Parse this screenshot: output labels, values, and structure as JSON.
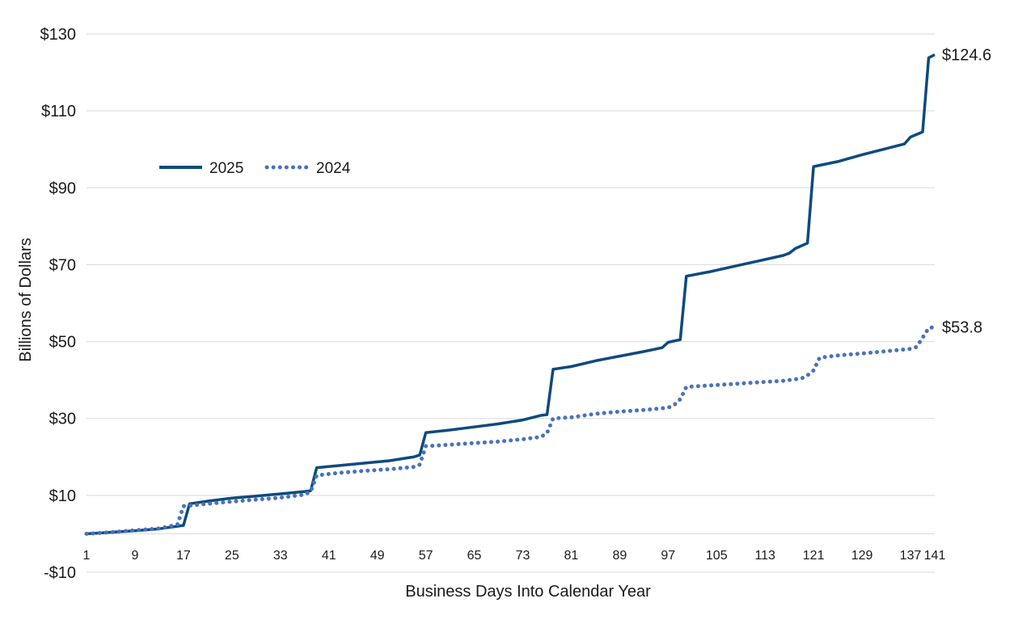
{
  "chart_data": {
    "type": "line",
    "title": "",
    "xlabel": "Business Days Into Calendar Year",
    "ylabel": "Billions of Dollars",
    "xlim": [
      1,
      141
    ],
    "ylim": [
      -10,
      130
    ],
    "x_ticks": [
      1,
      9,
      17,
      25,
      33,
      41,
      49,
      57,
      65,
      73,
      81,
      89,
      97,
      105,
      113,
      121,
      129,
      137,
      141
    ],
    "x_tick_labels": [
      "1",
      "9",
      "17",
      "25",
      "33",
      "41",
      "49",
      "57",
      "65",
      "73",
      "81",
      "89",
      "97",
      "105",
      "113",
      "121",
      "129",
      "137",
      "141"
    ],
    "y_ticks": [
      -10,
      10,
      30,
      50,
      70,
      90,
      110,
      130
    ],
    "y_tick_labels": [
      "-$10",
      "$10",
      "$30",
      "$50",
      "$70",
      "$90",
      "$110",
      "$130"
    ],
    "grid": true,
    "legend_position": "upper-left",
    "series": [
      {
        "name": "2025",
        "style": "solid",
        "color": "#0d4a7e",
        "end_label": "$124.6",
        "points": [
          [
            1,
            0
          ],
          [
            5,
            0.4
          ],
          [
            9,
            0.8
          ],
          [
            13,
            1.3
          ],
          [
            17,
            2.2
          ],
          [
            18,
            7.8
          ],
          [
            21,
            8.5
          ],
          [
            25,
            9.3
          ],
          [
            29,
            9.8
          ],
          [
            33,
            10.4
          ],
          [
            37,
            11
          ],
          [
            38,
            11.2
          ],
          [
            39,
            17.2
          ],
          [
            43,
            17.8
          ],
          [
            47,
            18.4
          ],
          [
            51,
            19
          ],
          [
            55,
            20
          ],
          [
            56,
            20.5
          ],
          [
            57,
            26.3
          ],
          [
            61,
            27
          ],
          [
            65,
            27.8
          ],
          [
            69,
            28.6
          ],
          [
            73,
            29.6
          ],
          [
            76,
            30.8
          ],
          [
            77,
            31
          ],
          [
            78,
            42.8
          ],
          [
            81,
            43.5
          ],
          [
            85,
            45
          ],
          [
            89,
            46.2
          ],
          [
            93,
            47.4
          ],
          [
            96,
            48.4
          ],
          [
            97,
            49.8
          ],
          [
            99,
            50.5
          ],
          [
            100,
            67
          ],
          [
            104,
            68.2
          ],
          [
            108,
            69.6
          ],
          [
            112,
            71
          ],
          [
            116,
            72.4
          ],
          [
            117,
            73
          ],
          [
            118,
            74.2
          ],
          [
            120,
            75.6
          ],
          [
            121,
            95.5
          ],
          [
            125,
            96.8
          ],
          [
            129,
            98.6
          ],
          [
            133,
            100.2
          ],
          [
            136,
            101.4
          ],
          [
            137,
            103.2
          ],
          [
            139,
            104.5
          ],
          [
            140,
            123.8
          ],
          [
            141,
            124.6
          ]
        ]
      },
      {
        "name": "2024",
        "style": "dotted",
        "color": "#4a72b8",
        "end_label": "$53.8",
        "points": [
          [
            1,
            0
          ],
          [
            5,
            0.4
          ],
          [
            9,
            0.9
          ],
          [
            13,
            1.4
          ],
          [
            16,
            2.4
          ],
          [
            17,
            7.2
          ],
          [
            21,
            7.8
          ],
          [
            25,
            8.4
          ],
          [
            29,
            8.9
          ],
          [
            33,
            9.4
          ],
          [
            37,
            10.2
          ],
          [
            38,
            11
          ],
          [
            39,
            15.2
          ],
          [
            43,
            15.9
          ],
          [
            47,
            16.4
          ],
          [
            51,
            16.8
          ],
          [
            55,
            17.4
          ],
          [
            56,
            18
          ],
          [
            57,
            22.8
          ],
          [
            61,
            23.2
          ],
          [
            65,
            23.6
          ],
          [
            69,
            24
          ],
          [
            73,
            24.6
          ],
          [
            76,
            25.2
          ],
          [
            77,
            26.2
          ],
          [
            78,
            30
          ],
          [
            81,
            30.3
          ],
          [
            85,
            31.2
          ],
          [
            89,
            31.8
          ],
          [
            93,
            32.2
          ],
          [
            97,
            32.8
          ],
          [
            98,
            33.5
          ],
          [
            99,
            35
          ],
          [
            100,
            38.2
          ],
          [
            104,
            38.6
          ],
          [
            108,
            39
          ],
          [
            112,
            39.4
          ],
          [
            116,
            39.8
          ],
          [
            119,
            40.4
          ],
          [
            120,
            41.2
          ],
          [
            121,
            42.5
          ],
          [
            122,
            45.8
          ],
          [
            125,
            46.4
          ],
          [
            129,
            46.9
          ],
          [
            133,
            47.5
          ],
          [
            137,
            48.1
          ],
          [
            138,
            48.6
          ],
          [
            139,
            51
          ],
          [
            140,
            53.5
          ],
          [
            141,
            53.8
          ]
        ]
      }
    ]
  }
}
